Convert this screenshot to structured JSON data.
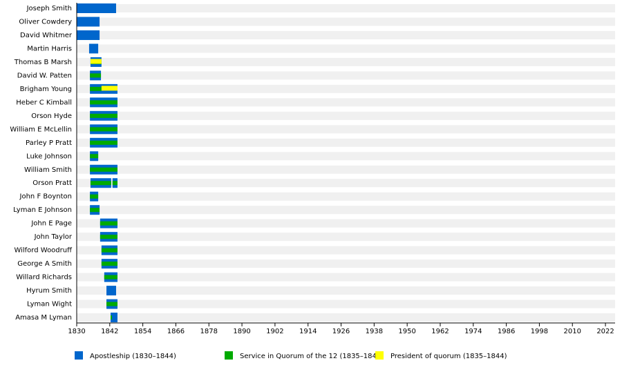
{
  "chart_data": {
    "type": "timeline",
    "categories": [
      "Joseph Smith",
      "Oliver Cowdery",
      "David Whitmer",
      "Martin Harris",
      "Thomas B Marsh",
      "David W. Patten",
      "Brigham Young",
      "Heber C Kimball",
      "Orson Hyde",
      "William E McLellin",
      "Parley P Pratt",
      "Luke Johnson",
      "William Smith",
      "Orson Pratt",
      "John F Boynton",
      "Lyman E Johnson",
      "John E Page",
      "John Taylor",
      "Wilford Woodruff",
      "George A Smith",
      "Willard Richards",
      "Hyrum Smith",
      "Lyman Wight",
      "Amasa M Lyman"
    ],
    "series": [
      {
        "name": "Apostleship (1830–1844)",
        "color": "#0066cc",
        "values": [
          [
            [
              1830,
              1844.3
            ]
          ],
          [
            [
              1830,
              1838.3
            ]
          ],
          [
            [
              1830,
              1838.3
            ]
          ],
          [
            [
              1834.5,
              1837.8
            ]
          ],
          [
            [
              1835,
              1839
            ]
          ],
          [
            [
              1834.8,
              1838.8
            ]
          ],
          [
            [
              1834.8,
              1844.8
            ]
          ],
          [
            [
              1834.8,
              1844.8
            ]
          ],
          [
            [
              1834.8,
              1844.8
            ]
          ],
          [
            [
              1834.8,
              1844.8
            ]
          ],
          [
            [
              1834.8,
              1844.8
            ]
          ],
          [
            [
              1834.8,
              1837.8
            ]
          ],
          [
            [
              1834.8,
              1844.8
            ]
          ],
          [
            [
              1835,
              1842.5
            ],
            [
              1843,
              1844.8
            ]
          ],
          [
            [
              1834.8,
              1837.8
            ]
          ],
          [
            [
              1834.8,
              1838.3
            ]
          ],
          [
            [
              1838.5,
              1844.8
            ]
          ],
          [
            [
              1838.5,
              1844.8
            ]
          ],
          [
            [
              1839,
              1844.8
            ]
          ],
          [
            [
              1839,
              1844.8
            ]
          ],
          [
            [
              1840,
              1844.8
            ]
          ],
          [
            [
              1840.8,
              1844.3
            ]
          ],
          [
            [
              1840.8,
              1844.8
            ]
          ],
          [
            [
              1842.3,
              1844.8
            ]
          ]
        ]
      },
      {
        "name": "Service in Quorum of the 12 (1835–1844)",
        "color": "#00aa00",
        "values": [
          null,
          null,
          null,
          null,
          [
            [
              1835,
              1839
            ]
          ],
          [
            [
              1834.8,
              1838.8
            ]
          ],
          [
            [
              1834.8,
              1839
            ]
          ],
          [
            [
              1834.8,
              1844.8
            ]
          ],
          [
            [
              1834.8,
              1844.8
            ]
          ],
          [
            [
              1834.8,
              1844.8
            ]
          ],
          [
            [
              1834.8,
              1844.8
            ]
          ],
          [
            [
              1834.8,
              1837.8
            ]
          ],
          [
            [
              1834.8,
              1844.8
            ]
          ],
          [
            [
              1835,
              1842.5
            ],
            [
              1843,
              1844.8
            ]
          ],
          [
            [
              1834.8,
              1837.8
            ]
          ],
          [
            [
              1834.8,
              1838.3
            ]
          ],
          [
            [
              1838.5,
              1844.8
            ]
          ],
          [
            [
              1838.5,
              1844.8
            ]
          ],
          [
            [
              1839,
              1844.8
            ]
          ],
          [
            [
              1839,
              1844.8
            ]
          ],
          [
            [
              1840,
              1844.8
            ]
          ],
          null,
          [
            [
              1840.8,
              1844.8
            ]
          ],
          [
            [
              1842.3,
              1842.8
            ]
          ]
        ]
      },
      {
        "name": "President of quorum (1835–1844)",
        "color": "#ffff00",
        "values": [
          null,
          null,
          null,
          null,
          [
            [
              1835,
              1839
            ]
          ],
          null,
          [
            [
              1839,
              1844.8
            ]
          ],
          null,
          null,
          null,
          null,
          null,
          null,
          null,
          null,
          null,
          null,
          null,
          null,
          null,
          null,
          null,
          null,
          null
        ]
      }
    ],
    "xlim": [
      1830,
      2025.5
    ],
    "xticks": [
      1830,
      1842,
      1854,
      1866,
      1878,
      1890,
      1902,
      1914,
      1926,
      1938,
      1950,
      1962,
      1974,
      1986,
      1998,
      2010,
      2022
    ]
  }
}
